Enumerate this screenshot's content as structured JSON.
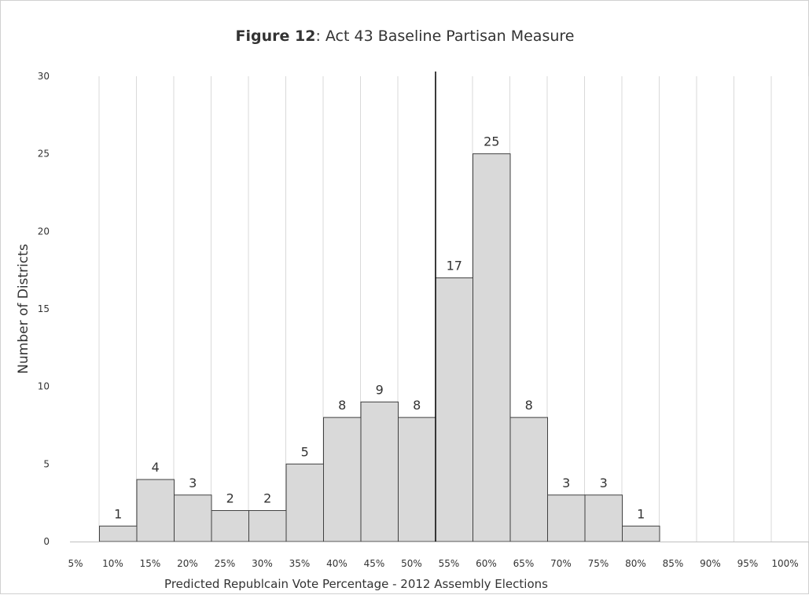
{
  "chart_data": {
    "type": "bar",
    "title_bold": "Figure 12",
    "title_rest": ": Act 43 Baseline Partisan Measure",
    "xlabel": "Predicted Republcain Vote Percentage - 2012 Assembly Elections",
    "ylabel": "Number of Districts",
    "ylim": [
      0,
      30
    ],
    "yticks": [
      0,
      5,
      10,
      15,
      20,
      25,
      30
    ],
    "x_tick_labels": [
      "5%",
      "10%",
      "15%",
      "20%",
      "25%",
      "30%",
      "35%",
      "40%",
      "45%",
      "50%",
      "55%",
      "60%",
      "65%",
      "70%",
      "75%",
      "80%",
      "85%",
      "90%",
      "95%",
      "100%"
    ],
    "bins": [
      {
        "start": 10,
        "end": 15,
        "value": 1
      },
      {
        "start": 15,
        "end": 20,
        "value": 4
      },
      {
        "start": 20,
        "end": 25,
        "value": 3
      },
      {
        "start": 25,
        "end": 30,
        "value": 2
      },
      {
        "start": 30,
        "end": 35,
        "value": 2
      },
      {
        "start": 35,
        "end": 40,
        "value": 5
      },
      {
        "start": 40,
        "end": 45,
        "value": 8
      },
      {
        "start": 45,
        "end": 50,
        "value": 9
      },
      {
        "start": 50,
        "end": 55,
        "value": 8
      },
      {
        "start": 55,
        "end": 60,
        "value": 17
      },
      {
        "start": 60,
        "end": 65,
        "value": 25
      },
      {
        "start": 65,
        "end": 70,
        "value": 8
      },
      {
        "start": 70,
        "end": 75,
        "value": 3
      },
      {
        "start": 75,
        "end": 80,
        "value": 3
      },
      {
        "start": 80,
        "end": 85,
        "value": 1
      }
    ],
    "reference_line_x": 55,
    "grid": "vertical",
    "legend": "none",
    "colors": {
      "bar_fill": "#d9d9d9",
      "bar_stroke": "#404040",
      "grid": "#d9d9d9",
      "reference_line": "#000000"
    }
  }
}
